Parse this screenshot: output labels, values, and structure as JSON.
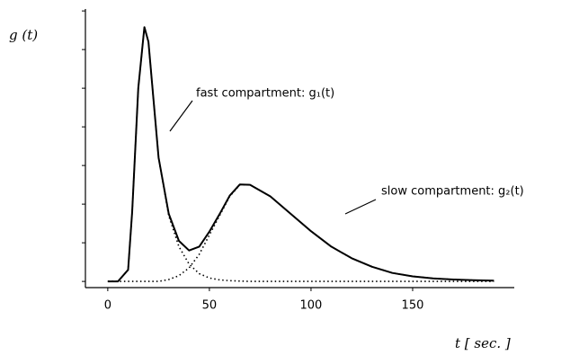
{
  "chart_data": {
    "type": "line",
    "y_label": "g (t)",
    "x_label": "t  [ sec. ]",
    "annotations": [
      "fast compartment: g₁(t)",
      "slow compartment: g₂(t)"
    ],
    "x": [
      0,
      5,
      10,
      12,
      15,
      18,
      20,
      25,
      30,
      35,
      40,
      45,
      50,
      55,
      60,
      65,
      70,
      80,
      90,
      100,
      110,
      120,
      130,
      140,
      150,
      160,
      170,
      180,
      190
    ],
    "series": [
      {
        "color": "#000000",
        "style": "dotted",
        "values": [
          0,
          0,
          0.3,
          1.8,
          5.0,
          6.58,
          6.2,
          3.2,
          1.7,
          0.9,
          0.45,
          0.2,
          0.09,
          0.04,
          0.02,
          0.01,
          0,
          0,
          0,
          0,
          0,
          0,
          0,
          0,
          0,
          0,
          0,
          0,
          0
        ]
      },
      {
        "color": "#000000",
        "style": "dotted",
        "values": [
          0,
          0,
          0,
          0,
          0,
          0,
          0,
          0,
          0.05,
          0.15,
          0.35,
          0.7,
          1.2,
          1.7,
          2.2,
          2.5,
          2.5,
          2.2,
          1.75,
          1.3,
          0.9,
          0.6,
          0.38,
          0.22,
          0.13,
          0.08,
          0.05,
          0.03,
          0.02
        ]
      },
      {
        "color": "#000000",
        "style": "solid",
        "values": [
          0,
          0,
          0.3,
          1.8,
          5.0,
          6.58,
          6.2,
          3.2,
          1.75,
          1.05,
          0.8,
          0.9,
          1.29,
          1.74,
          2.22,
          2.51,
          2.5,
          2.2,
          1.75,
          1.3,
          0.9,
          0.6,
          0.38,
          0.22,
          0.13,
          0.08,
          0.05,
          0.03,
          0.02
        ]
      }
    ],
    "xlim": [
      -11,
      200
    ],
    "xticks": [
      0,
      50,
      100,
      150
    ],
    "ylim": [
      -0.16,
      7.05
    ],
    "yticks": [
      0,
      1,
      2,
      3,
      4,
      5,
      6,
      7
    ],
    "show_ytick_labels": false,
    "grid": false
  }
}
